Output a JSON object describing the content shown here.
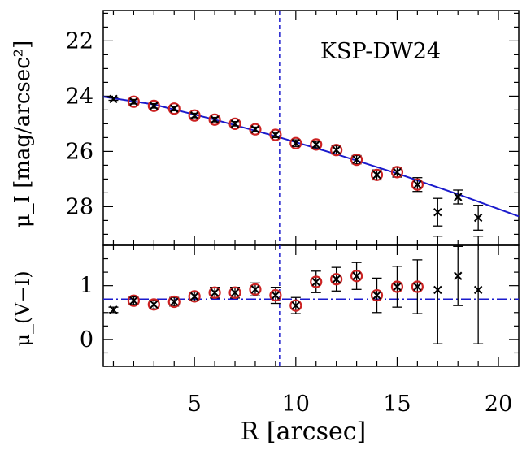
{
  "chart_data": {
    "type": "scatter",
    "annotation": "KSP-DW24",
    "xlabel": "R [arcsec]",
    "xlim": [
      0.5,
      21
    ],
    "xticks": [
      5,
      10,
      15,
      20
    ],
    "vline_x": 9.2,
    "colors": {
      "model": "#1a1acc",
      "marker": "#000000",
      "circle": "#cc2222"
    },
    "top_panel": {
      "ylabel": "μ_I [mag/arcsec²]",
      "ylim": [
        20.9,
        29.4
      ],
      "yticks": [
        22,
        24,
        26,
        28
      ],
      "points": [
        {
          "x": 1,
          "y": 24.1,
          "err": 0.05,
          "circled": false
        },
        {
          "x": 2,
          "y": 24.2,
          "err": 0.08,
          "circled": true
        },
        {
          "x": 3,
          "y": 24.35,
          "err": 0.08,
          "circled": true
        },
        {
          "x": 4,
          "y": 24.45,
          "err": 0.08,
          "circled": true
        },
        {
          "x": 5,
          "y": 24.7,
          "err": 0.08,
          "circled": true
        },
        {
          "x": 6,
          "y": 24.85,
          "err": 0.08,
          "circled": true
        },
        {
          "x": 7,
          "y": 25.0,
          "err": 0.08,
          "circled": true
        },
        {
          "x": 8,
          "y": 25.2,
          "err": 0.08,
          "circled": true
        },
        {
          "x": 9,
          "y": 25.4,
          "err": 0.1,
          "circled": true
        },
        {
          "x": 10,
          "y": 25.7,
          "err": 0.12,
          "circled": true
        },
        {
          "x": 11,
          "y": 25.75,
          "err": 0.12,
          "circled": true
        },
        {
          "x": 12,
          "y": 25.95,
          "err": 0.15,
          "circled": true
        },
        {
          "x": 13,
          "y": 26.3,
          "err": 0.15,
          "circled": true
        },
        {
          "x": 14,
          "y": 26.85,
          "err": 0.18,
          "circled": true
        },
        {
          "x": 15,
          "y": 26.75,
          "err": 0.18,
          "circled": true
        },
        {
          "x": 16,
          "y": 27.2,
          "err": 0.25,
          "circled": true
        },
        {
          "x": 17,
          "y": 28.2,
          "err": 0.5,
          "circled": false
        },
        {
          "x": 18,
          "y": 27.65,
          "err": 0.25,
          "circled": false
        },
        {
          "x": 19,
          "y": 28.4,
          "err": 0.45,
          "circled": false
        }
      ],
      "model_line": {
        "x": [
          0.5,
          3,
          6,
          9,
          12,
          15,
          18,
          21
        ],
        "y": [
          24.02,
          24.3,
          24.85,
          25.45,
          26.1,
          26.8,
          27.55,
          28.35
        ]
      }
    },
    "bottom_panel": {
      "ylabel": "μ_(V−I)",
      "ylim": [
        -0.5,
        1.75
      ],
      "yticks": [
        0,
        1
      ],
      "points": [
        {
          "x": 1,
          "y": 0.55,
          "err": 0.05,
          "circled": false
        },
        {
          "x": 2,
          "y": 0.72,
          "err": 0.07,
          "circled": true
        },
        {
          "x": 3,
          "y": 0.65,
          "err": 0.08,
          "circled": true
        },
        {
          "x": 4,
          "y": 0.7,
          "err": 0.08,
          "circled": true
        },
        {
          "x": 5,
          "y": 0.8,
          "err": 0.08,
          "circled": true
        },
        {
          "x": 6,
          "y": 0.87,
          "err": 0.1,
          "circled": true
        },
        {
          "x": 7,
          "y": 0.87,
          "err": 0.1,
          "circled": true
        },
        {
          "x": 8,
          "y": 0.93,
          "err": 0.12,
          "circled": true
        },
        {
          "x": 9,
          "y": 0.82,
          "err": 0.15,
          "circled": true
        },
        {
          "x": 10,
          "y": 0.63,
          "err": 0.15,
          "circled": true
        },
        {
          "x": 11,
          "y": 1.07,
          "err": 0.2,
          "circled": true
        },
        {
          "x": 12,
          "y": 1.12,
          "err": 0.22,
          "circled": true
        },
        {
          "x": 13,
          "y": 1.18,
          "err": 0.25,
          "circled": true
        },
        {
          "x": 14,
          "y": 0.82,
          "err": 0.32,
          "circled": true
        },
        {
          "x": 15,
          "y": 0.98,
          "err": 0.38,
          "circled": true
        },
        {
          "x": 16,
          "y": 0.98,
          "err": 0.5,
          "circled": true
        },
        {
          "x": 17,
          "y": 0.92,
          "err": 1.0,
          "circled": false
        },
        {
          "x": 18,
          "y": 1.18,
          "err": 0.55,
          "circled": false
        },
        {
          "x": 19,
          "y": 0.92,
          "err": 1.0,
          "circled": false
        }
      ],
      "hline_y": 0.75
    }
  }
}
